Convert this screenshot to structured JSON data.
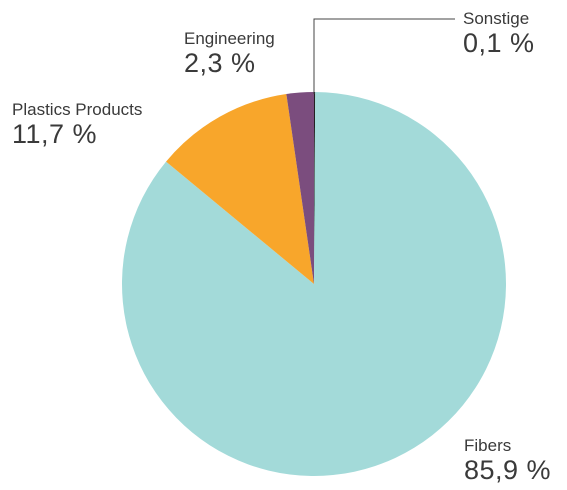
{
  "chart_data": {
    "type": "pie",
    "title": "",
    "slices": [
      {
        "label": "Sonstige",
        "value": 0.1,
        "display": "0,1 %",
        "color": "#222222"
      },
      {
        "label": "Fibers",
        "value": 85.9,
        "display": "85,9 %",
        "color": "#a3dad9"
      },
      {
        "label": "Plastics Products",
        "value": 11.7,
        "display": "11,7 %",
        "color": "#f8a62b"
      },
      {
        "label": "Engineering",
        "value": 2.3,
        "display": "2,3 %",
        "color": "#7b4d7e"
      }
    ]
  }
}
